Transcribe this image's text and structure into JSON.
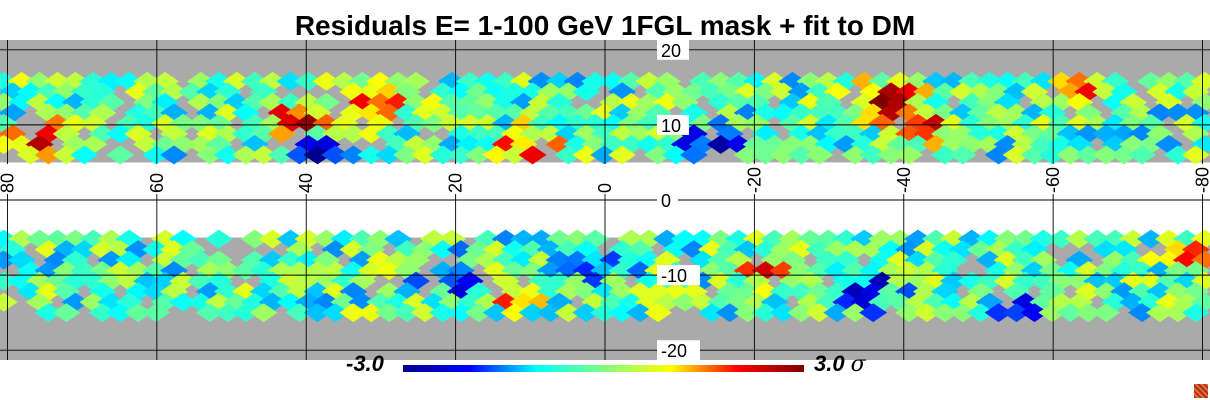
{
  "title": "Residuals E= 1-100 GeV 1FGL mask + fit to DM",
  "colorbar": {
    "min_label": "-3.0",
    "max_label": "3.0",
    "unit": "σ",
    "colors": [
      "#00008f",
      "#0000ff",
      "#00ffff",
      "#80ff80",
      "#ffff00",
      "#ff0000",
      "#800000"
    ]
  },
  "colors": {
    "mask_gray": "#aaaaaa",
    "grid": "#000000"
  },
  "chart_data": {
    "type": "heatmap",
    "title": "Residuals E= 1-100 GeV 1FGL mask + fit to DM",
    "xlabel": "",
    "ylabel": "",
    "x_ticks": [
      80,
      60,
      40,
      20,
      0,
      -20,
      -40,
      -60,
      -80
    ],
    "x_tick_labels": [
      "80",
      "60",
      "40",
      "20",
      "0",
      "-20",
      "-40",
      "-60",
      "-80"
    ],
    "y_ticks": [
      20,
      10,
      0,
      -10,
      -20
    ],
    "y_tick_labels": [
      "20",
      "10",
      "0",
      "-10",
      "-20"
    ],
    "xlim": [
      81,
      -81
    ],
    "ylim": [
      -21.3,
      21.3
    ],
    "value_range": [
      -3.0,
      3.0
    ],
    "value_unit": "σ",
    "grid": true,
    "masked_band_b": [
      -5,
      5
    ],
    "hotspots": [
      {
        "l": 76,
        "b": 8,
        "value": 2.9
      },
      {
        "l": 41,
        "b": 10.5,
        "value": 2.7
      },
      {
        "l": 30,
        "b": 13,
        "value": 2.5
      },
      {
        "l": 10,
        "b": 7,
        "value": 2.6
      },
      {
        "l": -42,
        "b": 10,
        "value": 2.9
      },
      {
        "l": -38,
        "b": 13.5,
        "value": 2.4
      },
      {
        "l": -63,
        "b": 14,
        "value": 2.3
      },
      {
        "l": 12,
        "b": -12,
        "value": 2.0
      },
      {
        "l": -22,
        "b": -10,
        "value": 2.1
      },
      {
        "l": -80,
        "b": -8,
        "value": 1.9
      }
    ],
    "coldspots": [
      {
        "l": -15,
        "b": 7,
        "value": -2.8
      },
      {
        "l": 40,
        "b": 6,
        "value": -2.2
      },
      {
        "l": 20,
        "b": -10,
        "value": -2.3
      },
      {
        "l": -35,
        "b": -12,
        "value": -2.1
      },
      {
        "l": -55,
        "b": -14,
        "value": -2.0
      },
      {
        "l": 0,
        "b": -8,
        "value": -2.2
      }
    ]
  }
}
